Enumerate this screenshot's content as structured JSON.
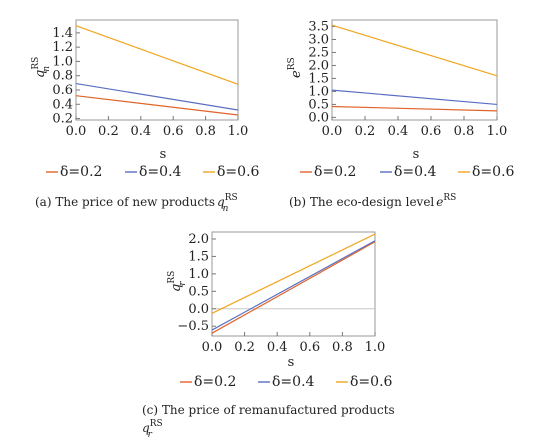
{
  "chart_data": [
    {
      "type": "line",
      "caption": "(a) The price of new products",
      "caption_math": "q",
      "caption_sub": "n",
      "caption_sup": "RS",
      "xlabel": "s",
      "ylabel": "q",
      "ylabel_sub": "n",
      "ylabel_sup": "RS",
      "xlim": [
        0,
        1
      ],
      "ylim": [
        0.18,
        1.58
      ],
      "xticks": [
        "0.0",
        "0.2",
        "0.4",
        "0.6",
        "0.8",
        "1.0"
      ],
      "yticks": [
        "0.2",
        "0.4",
        "0.6",
        "0.8",
        "1.0",
        "1.2",
        "1.4"
      ],
      "series": [
        {
          "name": "δ=0.2",
          "color": "#e0642a",
          "x": [
            0,
            1
          ],
          "y": [
            0.52,
            0.25
          ]
        },
        {
          "name": "δ=0.4",
          "color": "#5b6fc2",
          "x": [
            0,
            1
          ],
          "y": [
            0.69,
            0.32
          ]
        },
        {
          "name": "δ=0.6",
          "color": "#f0a51e",
          "x": [
            0,
            1
          ],
          "y": [
            1.5,
            0.68
          ]
        }
      ]
    },
    {
      "type": "line",
      "caption": "(b) The eco-design level",
      "caption_math": "e",
      "caption_sub": "",
      "caption_sup": "RS",
      "xlabel": "s",
      "ylabel": "e",
      "ylabel_sub": "",
      "ylabel_sup": "RS",
      "xlim": [
        0,
        1
      ],
      "ylim": [
        -0.1,
        3.75
      ],
      "xticks": [
        "0.0",
        "0.2",
        "0.4",
        "0.6",
        "0.8",
        "1.0"
      ],
      "yticks": [
        "0.0",
        "0.5",
        "1.0",
        "1.5",
        "2.0",
        "2.5",
        "3.0",
        "3.5"
      ],
      "series": [
        {
          "name": "δ=0.2",
          "color": "#e0642a",
          "x": [
            0,
            1
          ],
          "y": [
            0.42,
            0.25
          ]
        },
        {
          "name": "δ=0.4",
          "color": "#5b6fc2",
          "x": [
            0,
            1
          ],
          "y": [
            1.05,
            0.5
          ]
        },
        {
          "name": "δ=0.6",
          "color": "#f0a51e",
          "x": [
            0,
            1
          ],
          "y": [
            3.55,
            1.6
          ]
        }
      ]
    },
    {
      "type": "line",
      "caption": "(c) The price of remanufactured products",
      "caption_math": "q",
      "caption_sub": "r",
      "caption_sup": "RS",
      "xlabel": "s",
      "ylabel": "q",
      "ylabel_sub": "r",
      "ylabel_sup": "RS",
      "xlim": [
        0,
        1
      ],
      "ylim": [
        -0.78,
        2.2
      ],
      "xticks": [
        "0.0",
        "0.2",
        "0.4",
        "0.6",
        "0.8",
        "1.0"
      ],
      "yticks": [
        "−0.5",
        "0.0",
        "0.5",
        "1.0",
        "1.5",
        "2.0"
      ],
      "series": [
        {
          "name": "δ=0.2",
          "color": "#e0642a",
          "x": [
            0,
            1
          ],
          "y": [
            -0.7,
            1.92
          ]
        },
        {
          "name": "δ=0.4",
          "color": "#5b6fc2",
          "x": [
            0,
            1
          ],
          "y": [
            -0.61,
            1.95
          ]
        },
        {
          "name": "δ=0.6",
          "color": "#f0a51e",
          "x": [
            0,
            1
          ],
          "y": [
            -0.13,
            2.14
          ]
        }
      ]
    }
  ]
}
